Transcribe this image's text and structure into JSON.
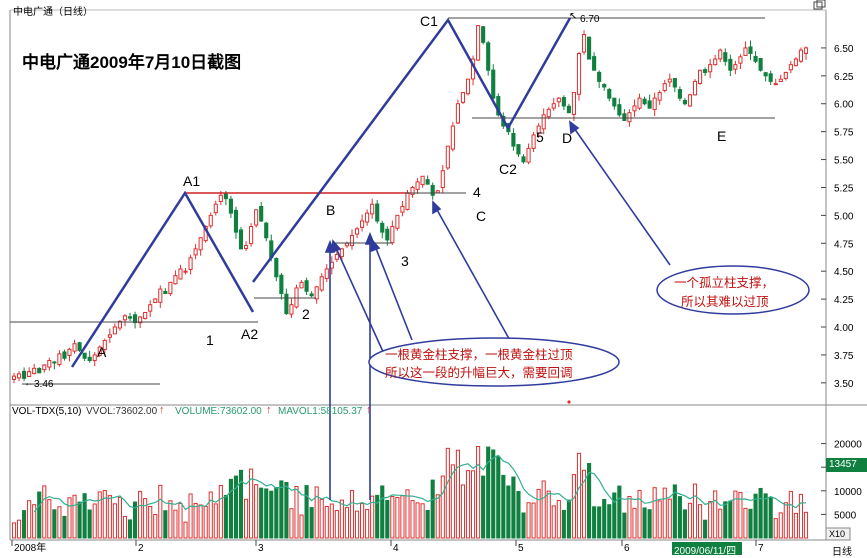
{
  "window": {
    "title": "中电广通（日线）",
    "screenshot_title": "中电广通2009年7月10日截图",
    "period_label": "日线"
  },
  "volume_header": {
    "indicator": "VOL-TDX(5,10)",
    "vvol": "VVOL:73602.00",
    "volume": "VOLUME:73602.00",
    "mavol": "MAVOL1:58105.37"
  },
  "colors": {
    "up": "#e03030",
    "down": "#108040",
    "trend": "#303c9c",
    "resistance": "#d02020",
    "ma_line": "#30b090",
    "bubble_text": "#c01010",
    "date_badge": "#108040",
    "value_badge": "#108040"
  },
  "labels": {
    "A": "A",
    "A1": "A1",
    "A2": "A2",
    "B": "B",
    "C": "C",
    "C1": "C1",
    "C2": "C2",
    "D": "D",
    "E": "E",
    "n1": "1",
    "n2": "2",
    "n3": "3",
    "n4": "4",
    "n5": "5",
    "low_marker": "3.46",
    "high_marker": "6.70"
  },
  "annotations": {
    "bubble1_line1": "一根黄金柱支撑，一根黄金柱过顶",
    "bubble1_line2": "所以这一段的升幅巨大，需要回调",
    "bubble2_line1": "一个孤立柱支撑，",
    "bubble2_line2": "所以其难以过顶"
  },
  "chart_data": {
    "type": "candlestick",
    "y_ticks": [
      "6.50",
      "6.25",
      "6.00",
      "5.75",
      "5.50",
      "5.25",
      "5.00",
      "4.75",
      "4.50",
      "4.25",
      "4.00",
      "3.75",
      "3.50"
    ],
    "ylim": [
      3.4,
      6.75
    ],
    "volume_ticks": [
      "20000",
      "15000",
      "10000",
      "5000"
    ],
    "volume_ylim": [
      0,
      25000
    ],
    "multiplier": "X10",
    "x_labels": [
      "2008年",
      "2",
      "3",
      "4",
      "5",
      "6",
      "7"
    ],
    "current_date": "2009/06/11/四",
    "current_volume": "13457",
    "low_price": 3.46,
    "high_price": 6.7,
    "resistance_level": 5.17,
    "support_levels": [
      4.05,
      4.25,
      4.73,
      5.85,
      5.16
    ],
    "price_series": [
      3.56,
      3.58,
      3.54,
      3.6,
      3.63,
      3.59,
      3.66,
      3.7,
      3.68,
      3.76,
      3.72,
      3.8,
      3.85,
      3.79,
      3.72,
      3.7,
      3.75,
      3.82,
      3.88,
      3.93,
      4.0,
      4.05,
      4.1,
      4.08,
      4.04,
      4.09,
      4.13,
      4.2,
      4.25,
      4.34,
      4.3,
      4.4,
      4.46,
      4.52,
      4.5,
      4.62,
      4.7,
      4.8,
      4.9,
      5.0,
      5.1,
      5.18,
      5.15,
      5.02,
      4.85,
      4.7,
      4.73,
      4.9,
      5.05,
      4.95,
      4.8,
      4.62,
      4.45,
      4.3,
      4.12,
      4.2,
      4.35,
      4.4,
      4.32,
      4.28,
      4.36,
      4.45,
      4.52,
      4.58,
      4.65,
      4.7,
      4.75,
      4.82,
      4.88,
      4.95,
      5.02,
      5.1,
      4.95,
      4.85,
      4.78,
      4.9,
      5.0,
      5.08,
      5.2,
      5.25,
      5.3,
      5.35,
      5.28,
      5.18,
      5.22,
      5.4,
      5.62,
      5.8,
      6.0,
      6.1,
      6.22,
      6.4,
      6.7,
      6.55,
      6.3,
      6.05,
      5.9,
      5.8,
      5.75,
      5.62,
      5.55,
      5.48,
      5.6,
      5.72,
      5.8,
      5.9,
      5.95,
      6.0,
      6.05,
      5.98,
      5.92,
      6.1,
      6.45,
      6.62,
      6.4,
      6.3,
      6.2,
      6.15,
      6.05,
      5.98,
      5.9,
      5.85,
      5.92,
      5.98,
      6.05,
      6.0,
      5.96,
      6.05,
      6.1,
      6.18,
      6.22,
      6.15,
      6.05,
      6.0,
      6.08,
      6.2,
      6.3,
      6.28,
      6.35,
      6.4,
      6.48,
      6.38,
      6.3,
      6.35,
      6.42,
      6.5,
      6.45,
      6.38,
      6.3,
      6.25,
      6.2,
      6.18,
      6.22,
      6.28,
      6.35,
      6.4,
      6.48,
      6.5
    ]
  }
}
